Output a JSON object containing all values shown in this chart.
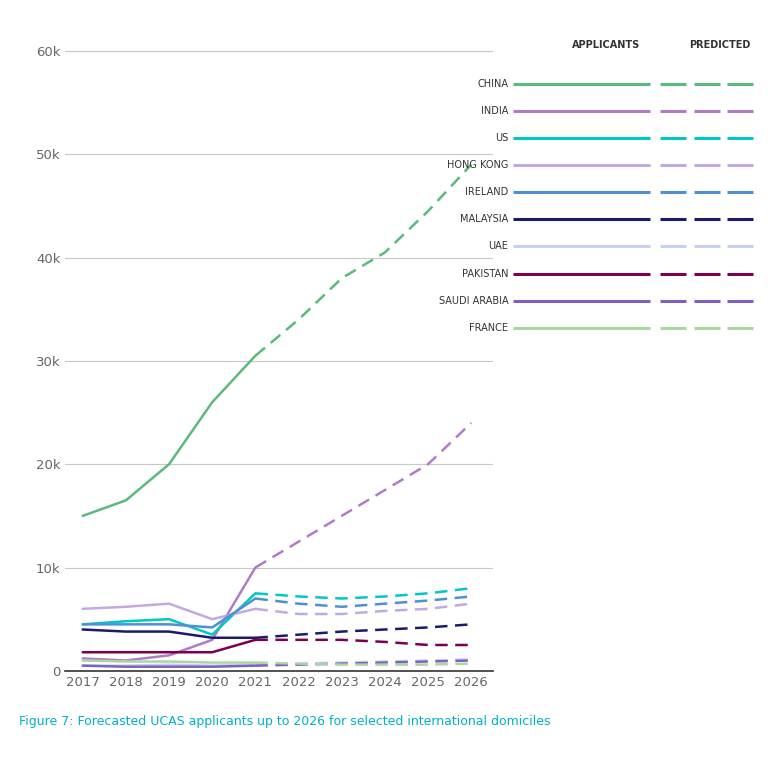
{
  "title": "Figure 7: Forecasted UCAS applicants up to 2026 for selected international domiciles",
  "title_color": "#00b0c8",
  "years_actual": [
    2017,
    2018,
    2019,
    2020,
    2021
  ],
  "years_predicted": [
    2021,
    2022,
    2023,
    2024,
    2025,
    2026
  ],
  "countries": [
    "CHINA",
    "INDIA",
    "US",
    "HONG KONG",
    "IRELAND",
    "MALAYSIA",
    "UAE",
    "PAKISTAN",
    "SAUDI ARABIA",
    "FRANCE"
  ],
  "colors": {
    "CHINA": "#5aba7e",
    "INDIA": "#b07cc6",
    "US": "#00c8c8",
    "HONG KONG": "#c0aae0",
    "IRELAND": "#5090d0",
    "MALAYSIA": "#1a1a6e",
    "UAE": "#c8d0f0",
    "PAKISTAN": "#7b0050",
    "SAUDI ARABIA": "#8060c0",
    "FRANCE": "#a8d8a0"
  },
  "actual": {
    "CHINA": [
      15000,
      16500,
      20000,
      26000,
      30500
    ],
    "INDIA": [
      1200,
      1000,
      1500,
      3000,
      10000
    ],
    "US": [
      4500,
      4800,
      5000,
      3500,
      7500
    ],
    "HONG KONG": [
      6000,
      6200,
      6500,
      5000,
      6000
    ],
    "IRELAND": [
      4500,
      4500,
      4500,
      4200,
      7000
    ],
    "MALAYSIA": [
      4000,
      3800,
      3800,
      3200,
      3200
    ],
    "UAE": [
      500,
      500,
      600,
      500,
      600
    ],
    "PAKISTAN": [
      1800,
      1800,
      1800,
      1800,
      3000
    ],
    "SAUDI ARABIA": [
      500,
      400,
      400,
      400,
      500
    ],
    "FRANCE": [
      1000,
      900,
      900,
      800,
      800
    ]
  },
  "predicted": {
    "CHINA": [
      30500,
      34000,
      38000,
      40500,
      44500,
      49000
    ],
    "INDIA": [
      10000,
      12500,
      15000,
      17500,
      20000,
      24000
    ],
    "US": [
      7500,
      7200,
      7000,
      7200,
      7500,
      8000
    ],
    "HONG KONG": [
      6000,
      5500,
      5500,
      5800,
      6000,
      6500
    ],
    "IRELAND": [
      7000,
      6500,
      6200,
      6500,
      6800,
      7200
    ],
    "MALAYSIA": [
      3200,
      3500,
      3800,
      4000,
      4200,
      4500
    ],
    "UAE": [
      600,
      700,
      800,
      900,
      1000,
      1100
    ],
    "PAKISTAN": [
      3000,
      3000,
      3000,
      2800,
      2500,
      2500
    ],
    "SAUDI ARABIA": [
      500,
      600,
      700,
      800,
      900,
      1000
    ],
    "FRANCE": [
      800,
      700,
      600,
      600,
      600,
      700
    ]
  },
  "ylim": [
    0,
    62000
  ],
  "yticks": [
    0,
    10000,
    20000,
    30000,
    40000,
    50000,
    60000
  ],
  "ytick_labels": [
    "0",
    "10k",
    "20k",
    "30k",
    "40k",
    "50k",
    "60k"
  ],
  "xlim": [
    2016.6,
    2026.5
  ],
  "xticks": [
    2017,
    2018,
    2019,
    2020,
    2021,
    2022,
    2023,
    2024,
    2025,
    2026
  ]
}
